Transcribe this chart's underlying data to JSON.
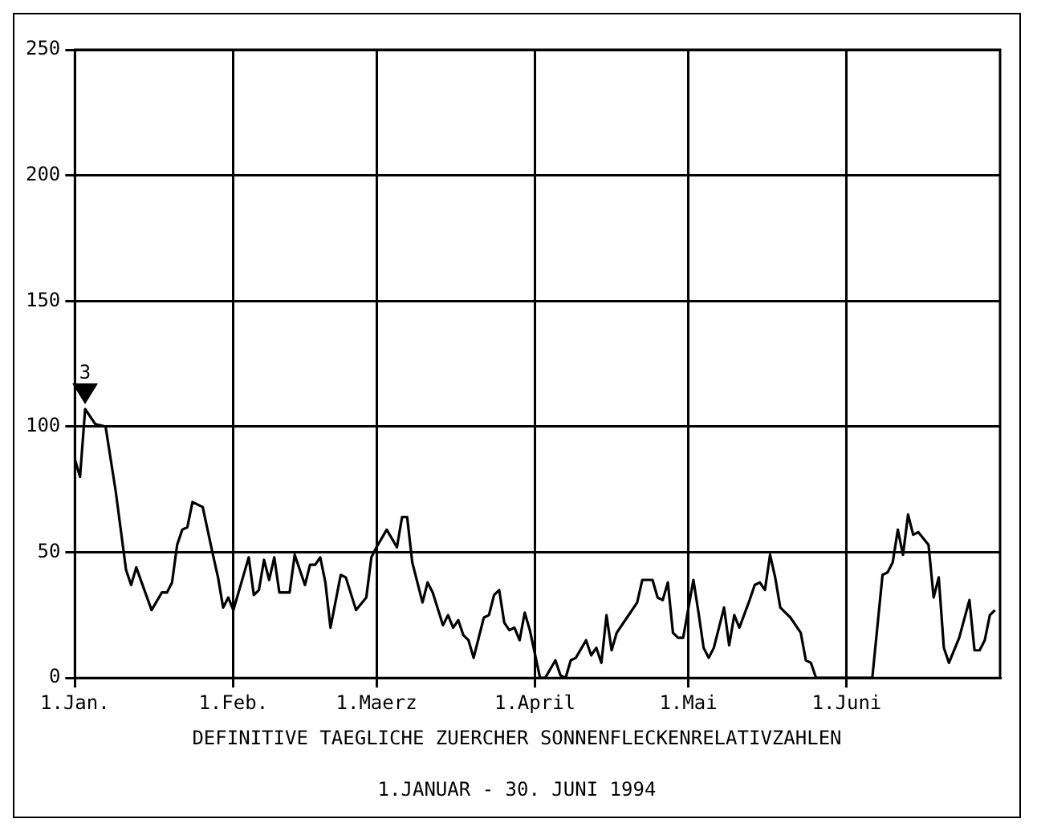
{
  "chart_data": {
    "type": "line",
    "title": "DEFINITIVE TAEGLICHE ZUERCHER SONNENFLECKENRELATIVZAHLEN",
    "subtitle": "1.JANUAR - 30. JUNI 1994",
    "annotations": [
      {
        "text": "3",
        "x": "1994-01-03",
        "y": 107
      }
    ],
    "x": [
      "1994-01-01",
      "1994-01-02",
      "1994-01-03",
      "1994-01-05",
      "1994-01-07",
      "1994-01-09",
      "1994-01-11",
      "1994-01-12",
      "1994-01-13",
      "1994-01-16",
      "1994-01-18",
      "1994-01-19",
      "1994-01-20",
      "1994-01-21",
      "1994-01-22",
      "1994-01-23",
      "1994-01-24",
      "1994-01-26",
      "1994-01-28",
      "1994-01-29",
      "1994-01-30",
      "1994-01-31",
      "1994-02-01",
      "1994-02-04",
      "1994-02-05",
      "1994-02-06",
      "1994-02-07",
      "1994-02-08",
      "1994-02-09",
      "1994-02-10",
      "1994-02-12",
      "1994-02-13",
      "1994-02-15",
      "1994-02-16",
      "1994-02-17",
      "1994-02-18",
      "1994-02-19",
      "1994-02-20",
      "1994-02-22",
      "1994-02-23",
      "1994-02-25",
      "1994-02-27",
      "1994-02-28",
      "1994-03-01",
      "1994-03-03",
      "1994-03-05",
      "1994-03-06",
      "1994-03-07",
      "1994-03-08",
      "1994-03-10",
      "1994-03-11",
      "1994-03-12",
      "1994-03-14",
      "1994-03-15",
      "1994-03-16",
      "1994-03-17",
      "1994-03-18",
      "1994-03-19",
      "1994-03-20",
      "1994-03-22",
      "1994-03-23",
      "1994-03-24",
      "1994-03-25",
      "1994-03-26",
      "1994-03-27",
      "1994-03-28",
      "1994-03-29",
      "1994-03-30",
      "1994-03-31",
      "1994-04-02",
      "1994-04-03",
      "1994-04-05",
      "1994-04-06",
      "1994-04-07",
      "1994-04-08",
      "1994-04-09",
      "1994-04-11",
      "1994-04-12",
      "1994-04-13",
      "1994-04-14",
      "1994-04-15",
      "1994-04-16",
      "1994-04-17",
      "1994-04-19",
      "1994-04-21",
      "1994-04-22",
      "1994-04-24",
      "1994-04-25",
      "1994-04-26",
      "1994-04-27",
      "1994-04-28",
      "1994-04-29",
      "1994-04-30",
      "1994-05-02",
      "1994-05-03",
      "1994-05-04",
      "1994-05-05",
      "1994-05-06",
      "1994-05-08",
      "1994-05-09",
      "1994-05-10",
      "1994-05-11",
      "1994-05-13",
      "1994-05-14",
      "1994-05-15",
      "1994-05-16",
      "1994-05-17",
      "1994-05-18",
      "1994-05-19",
      "1994-05-21",
      "1994-05-23",
      "1994-05-24",
      "1994-05-25",
      "1994-05-26",
      "1994-06-06",
      "1994-06-08",
      "1994-06-09",
      "1994-06-10",
      "1994-06-11",
      "1994-06-12",
      "1994-06-13",
      "1994-06-14",
      "1994-06-15",
      "1994-06-17",
      "1994-06-18",
      "1994-06-19",
      "1994-06-20",
      "1994-06-21",
      "1994-06-23",
      "1994-06-25",
      "1994-06-26",
      "1994-06-27",
      "1994-06-28",
      "1994-06-29",
      "1994-06-30"
    ],
    "series": [
      {
        "color": "#000000",
        "values": [
          87,
          80,
          107,
          101,
          100,
          74,
          43,
          37,
          44,
          27,
          34,
          34,
          38,
          53,
          59,
          60,
          70,
          68,
          49,
          40,
          28,
          32,
          27,
          48,
          33,
          35,
          47,
          39,
          48,
          34,
          34,
          49,
          37,
          45,
          45,
          48,
          38,
          20,
          41,
          40,
          27,
          32,
          48,
          52,
          59,
          52,
          64,
          64,
          46,
          30,
          38,
          34,
          21,
          25,
          20,
          23,
          17,
          15,
          8,
          24,
          25,
          33,
          35,
          22,
          19,
          20,
          15,
          26,
          19,
          0,
          0,
          7,
          1,
          0,
          7,
          8,
          15,
          9,
          12,
          6,
          25,
          11,
          18,
          24,
          30,
          39,
          39,
          32,
          31,
          38,
          18,
          16,
          16,
          39,
          26,
          12,
          8,
          12,
          28,
          13,
          25,
          20,
          31,
          37,
          38,
          35,
          49,
          40,
          28,
          24,
          18,
          7,
          6,
          0,
          0,
          41,
          42,
          46,
          59,
          49,
          65,
          57,
          58,
          53,
          32,
          40,
          12,
          6,
          16,
          31,
          11,
          11,
          15,
          25,
          27
        ]
      }
    ],
    "xlim": [
      "1994-01-01",
      "1994-07-01"
    ],
    "xticks": [
      {
        "value": "1994-01-01",
        "label": "1.Jan."
      },
      {
        "value": "1994-02-01",
        "label": "1.Feb."
      },
      {
        "value": "1994-03-01",
        "label": "1.Maerz"
      },
      {
        "value": "1994-04-01",
        "label": "1.April"
      },
      {
        "value": "1994-05-01",
        "label": "1.Mai"
      },
      {
        "value": "1994-06-01",
        "label": "1.Juni"
      }
    ],
    "ylim": [
      0,
      250
    ],
    "yticks": [
      0,
      50,
      100,
      150,
      200,
      250
    ],
    "grid": true,
    "legend": false,
    "marker": "none",
    "line_style": "solid"
  }
}
